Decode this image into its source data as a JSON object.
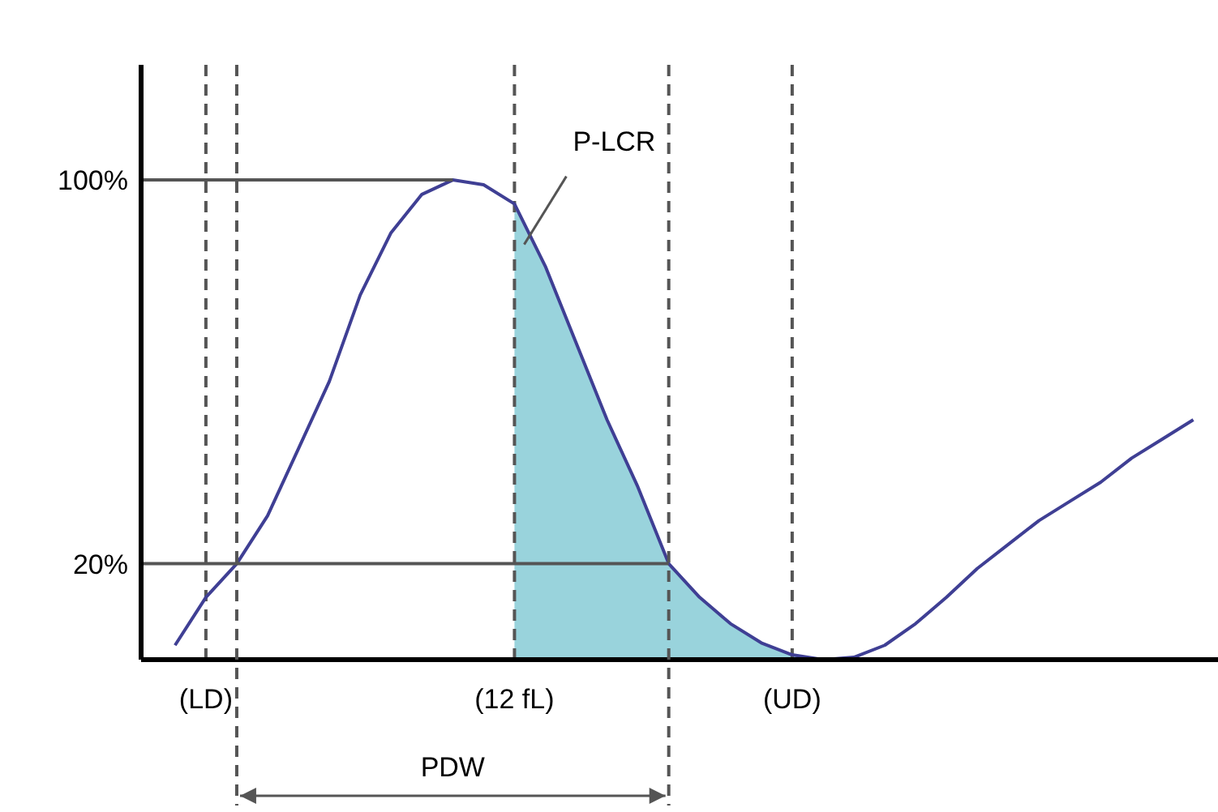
{
  "chart_data": {
    "type": "line",
    "categories": [
      null,
      "(LD)",
      null,
      null,
      null,
      null,
      null,
      null,
      null,
      null,
      null,
      "(12 fL)",
      null,
      null,
      null,
      null,
      null,
      null,
      null,
      null,
      "(UD)",
      null,
      null,
      null,
      null,
      null,
      null,
      null,
      null,
      null,
      null,
      null,
      null,
      null
    ],
    "series": [
      {
        "color": "#3f3f94",
        "values": [
          3,
          13,
          20,
          30,
          44,
          58,
          76,
          89,
          97,
          100,
          99,
          95,
          82,
          66,
          50,
          36,
          20,
          13,
          7.5,
          3.5,
          1,
          0,
          0.5,
          3,
          7.5,
          13,
          19,
          24,
          29,
          33,
          37,
          42,
          46,
          50
        ]
      }
    ],
    "ylim": [
      0,
      124
    ],
    "yticks": [
      {
        "value": 100,
        "label": "100%"
      },
      {
        "value": 20,
        "label": "20%"
      }
    ],
    "grid": "x",
    "legend": false,
    "marker": "none",
    "ref_lines": [
      {
        "axis": "y",
        "value": 100,
        "color": "#555555",
        "line_style": "solid"
      },
      {
        "axis": "y",
        "value": 20,
        "color": "#555555",
        "line_style": "solid"
      }
    ],
    "annotations": [
      "P-LCR",
      "PDW"
    ]
  }
}
